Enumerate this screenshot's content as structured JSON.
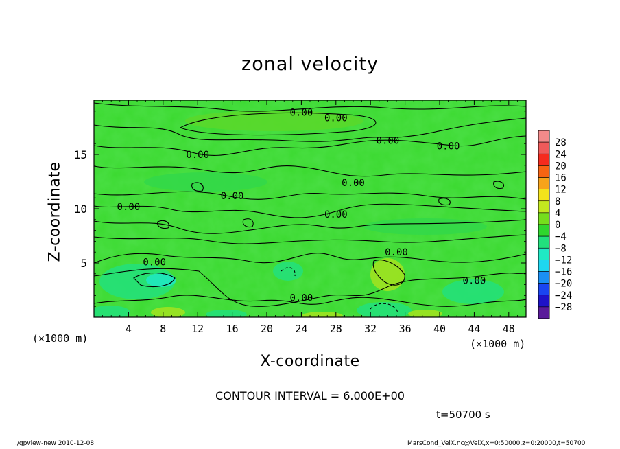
{
  "title": "zonal velocity",
  "x_axis": {
    "label": "X-coordinate",
    "unit_left": "(×1000 m)",
    "unit_right": "(×1000 m)"
  },
  "y_axis": {
    "label": "Z-coordinate"
  },
  "contour_interval_text": "CONTOUR INTERVAL = 6.000E+00",
  "time_text": "t=50700 s",
  "footer_left": "./gpview-new  2010-12-08",
  "footer_right": "MarsCond_VelX.nc@VelX,x=0:50000,z=0:20000,t=50700",
  "colors": {
    "background_field": "#3bd92f",
    "contour_line": "#000000"
  },
  "chart_data": {
    "type": "heatmap",
    "title": "zonal velocity",
    "xlabel": "X-coordinate",
    "ylabel": "Z-coordinate",
    "xlim": [
      0,
      50
    ],
    "ylim": [
      0,
      20
    ],
    "x_ticks": [
      4,
      8,
      12,
      16,
      20,
      24,
      28,
      32,
      36,
      40,
      44,
      48
    ],
    "y_ticks": [
      5,
      10,
      15
    ],
    "contour_labels": [
      {
        "x": 24,
        "z": 18.9,
        "text": "0.00"
      },
      {
        "x": 28,
        "z": 18.4,
        "text": "0.00"
      },
      {
        "x": 34,
        "z": 16.3,
        "text": "0.00"
      },
      {
        "x": 41,
        "z": 15.8,
        "text": "0.00"
      },
      {
        "x": 12,
        "z": 15.0,
        "text": "0.00"
      },
      {
        "x": 30,
        "z": 12.4,
        "text": "0.00"
      },
      {
        "x": 16,
        "z": 11.2,
        "text": "0.00"
      },
      {
        "x": 4,
        "z": 10.2,
        "text": "0.00"
      },
      {
        "x": 28,
        "z": 9.5,
        "text": "0.00"
      },
      {
        "x": 35,
        "z": 6.0,
        "text": "0.00"
      },
      {
        "x": 7,
        "z": 5.1,
        "text": "0.00"
      },
      {
        "x": 44,
        "z": 3.4,
        "text": "0.00"
      },
      {
        "x": 24,
        "z": 1.8,
        "text": "0.00"
      }
    ],
    "colorbar": {
      "labels": [
        "28",
        "24",
        "20",
        "16",
        "12",
        "8",
        "4",
        "0",
        "−4",
        "−8",
        "−12",
        "−16",
        "−20",
        "−24",
        "−28"
      ],
      "segments": [
        {
          "from": 28,
          "to": 32,
          "color": "#f38a8a"
        },
        {
          "from": 24,
          "to": 28,
          "color": "#f05a5a"
        },
        {
          "from": 20,
          "to": 24,
          "color": "#f52b1e"
        },
        {
          "from": 16,
          "to": 20,
          "color": "#f76413"
        },
        {
          "from": 12,
          "to": 16,
          "color": "#f7a31b"
        },
        {
          "from": 8,
          "to": 12,
          "color": "#f3e21c"
        },
        {
          "from": 4,
          "to": 8,
          "color": "#c3e81f"
        },
        {
          "from": 0,
          "to": 4,
          "color": "#75de1d"
        },
        {
          "from": -4,
          "to": 0,
          "color": "#2fd62e"
        },
        {
          "from": -8,
          "to": -4,
          "color": "#22e07d"
        },
        {
          "from": -12,
          "to": -8,
          "color": "#20e8c4"
        },
        {
          "from": -16,
          "to": -12,
          "color": "#1ed6f0"
        },
        {
          "from": -20,
          "to": -16,
          "color": "#1a8ff3"
        },
        {
          "from": -24,
          "to": -20,
          "color": "#1a45f0"
        },
        {
          "from": -28,
          "to": -24,
          "color": "#1e12c8"
        },
        {
          "from": -32,
          "to": -28,
          "color": "#5a1a9a"
        }
      ]
    }
  }
}
